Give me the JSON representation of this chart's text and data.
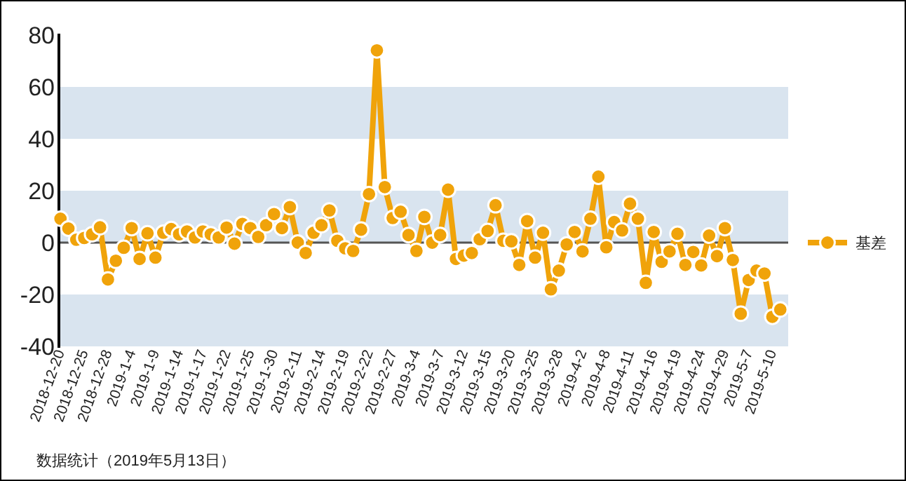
{
  "chart_data": {
    "type": "line",
    "categories": [
      "2018-12-20",
      null,
      null,
      "2018-12-25",
      null,
      null,
      "2018-12-28",
      null,
      null,
      "2019-1-4",
      null,
      null,
      "2019-1-9",
      null,
      null,
      "2019-1-14",
      null,
      null,
      "2019-1-17",
      null,
      null,
      "2019-1-22",
      null,
      null,
      "2019-1-25",
      null,
      null,
      "2019-1-30",
      null,
      null,
      "2019-2-11",
      null,
      null,
      "2019-2-14",
      null,
      null,
      "2019-2-19",
      null,
      null,
      "2019-2-22",
      null,
      null,
      "2019-2-27",
      null,
      null,
      "2019-3-4",
      null,
      null,
      "2019-3-7",
      null,
      null,
      "2019-3-12",
      null,
      null,
      "2019-3-15",
      null,
      null,
      "2019-3-20",
      null,
      null,
      "2019-3-25",
      null,
      null,
      "2019-3-28",
      null,
      null,
      "2019-4-2",
      null,
      null,
      "2019-4-8",
      null,
      null,
      "2019-4-11",
      null,
      null,
      "2019-4-16",
      null,
      null,
      "2019-4-19",
      null,
      null,
      "2019-4-24",
      null,
      null,
      "2019-4-29",
      null,
      null,
      "2019-5-7",
      null,
      null,
      "2019-5-10",
      null
    ],
    "series": [
      {
        "name": "基差",
        "color": "#f0a30a",
        "values": [
          9.2,
          5.4,
          1.1,
          1.8,
          3.2,
          5.9,
          -14.2,
          -7.0,
          -2.0,
          5.6,
          -6.3,
          3.6,
          -5.8,
          3.8,
          5.2,
          3.2,
          4.3,
          2.0,
          4.3,
          3.2,
          2.0,
          5.8,
          -0.4,
          7.2,
          5.6,
          2.2,
          6.7,
          11.0,
          5.6,
          13.7,
          0,
          -4.0,
          3.8,
          6.7,
          12.4,
          0.7,
          -2.2,
          -3.2,
          5.0,
          18.7,
          74.1,
          21.4,
          9.5,
          11.9,
          2.9,
          -3.2,
          9.9,
          0,
          2.9,
          20.4,
          -6.3,
          -5.0,
          -4.0,
          1.3,
          4.5,
          14.4,
          0.7,
          0.5,
          -8.6,
          8.3,
          -5.8,
          3.8,
          -18.0,
          -10.8,
          -0.7,
          4.1,
          -3.4,
          9.2,
          25.4,
          -1.8,
          7.9,
          4.7,
          15.0,
          9.2,
          -15.5,
          4.1,
          -7.4,
          -3.4,
          3.4,
          -8.6,
          -3.6,
          -8.8,
          2.7,
          -5.2,
          5.6,
          -6.7,
          -27.4,
          -14.4,
          -10.8,
          -11.9,
          -28.6,
          -25.8
        ]
      }
    ],
    "ylim": [
      -40,
      80
    ],
    "yticks": [
      -40,
      -20,
      0,
      20,
      40,
      60,
      80
    ],
    "grid": "y",
    "legend": "right",
    "marker": "circle",
    "line_style": "solid",
    "annotations": [
      "数据统计（2019年5月13日）"
    ]
  }
}
